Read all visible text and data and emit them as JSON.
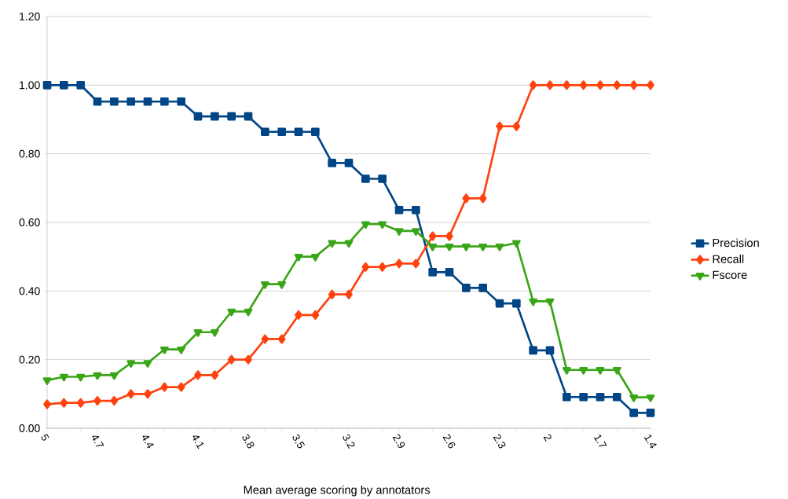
{
  "chart_data": {
    "type": "line",
    "xlabel": "Mean average scoring by annotators",
    "categories": [
      "5",
      null,
      null,
      "4.7",
      null,
      null,
      "4.4",
      null,
      null,
      "4.1",
      null,
      null,
      "3.8",
      null,
      null,
      "3.5",
      null,
      null,
      "3.2",
      null,
      null,
      "2.9",
      null,
      null,
      "2.6",
      null,
      null,
      "2.3",
      null,
      null,
      "2",
      null,
      null,
      "1.7",
      null,
      null,
      "1.4"
    ],
    "series": [
      {
        "name": "Precision",
        "color": "#004586",
        "marker": "square",
        "values": [
          1.0,
          1.0,
          1.0,
          0.952,
          0.952,
          0.952,
          0.952,
          0.952,
          0.952,
          0.909,
          0.909,
          0.909,
          0.909,
          0.864,
          0.864,
          0.864,
          0.864,
          0.773,
          0.773,
          0.727,
          0.727,
          0.636,
          0.636,
          0.455,
          0.455,
          0.409,
          0.409,
          0.364,
          0.364,
          0.227,
          0.227,
          0.091,
          0.091,
          0.091,
          0.091,
          0.045,
          0.045
        ]
      },
      {
        "name": "Recall",
        "color": "#ff420e",
        "marker": "diamond",
        "values": [
          0.07,
          0.074,
          0.074,
          0.08,
          0.08,
          0.1,
          0.1,
          0.12,
          0.12,
          0.155,
          0.155,
          0.2,
          0.2,
          0.26,
          0.26,
          0.33,
          0.33,
          0.39,
          0.39,
          0.47,
          0.47,
          0.48,
          0.48,
          0.56,
          0.56,
          0.67,
          0.67,
          0.88,
          0.88,
          1.0,
          1.0,
          1.0,
          1.0,
          1.0,
          1.0,
          1.0,
          1.0
        ]
      },
      {
        "name": "Fscore",
        "color": "#3aa517",
        "marker": "triangle",
        "values": [
          0.14,
          0.15,
          0.15,
          0.155,
          0.155,
          0.19,
          0.19,
          0.23,
          0.23,
          0.28,
          0.28,
          0.34,
          0.34,
          0.42,
          0.42,
          0.5,
          0.5,
          0.54,
          0.54,
          0.595,
          0.595,
          0.575,
          0.575,
          0.53,
          0.53,
          0.53,
          0.53,
          0.53,
          0.54,
          0.37,
          0.37,
          0.17,
          0.17,
          0.17,
          0.17,
          0.09,
          0.09
        ]
      }
    ],
    "ylim": [
      0,
      1.2
    ],
    "yticks": [
      {
        "value": 0,
        "label": "0.00"
      },
      {
        "value": 0.2,
        "label": "0.20"
      },
      {
        "value": 0.4,
        "label": "0.40"
      },
      {
        "value": 0.6,
        "label": "0.60"
      },
      {
        "value": 0.8,
        "label": "0.80"
      },
      {
        "value": 1.0,
        "label": "1.00"
      },
      {
        "value": 1.2,
        "label": "1.20"
      }
    ],
    "grid": "y",
    "legend": "right",
    "line_style": "solid"
  }
}
